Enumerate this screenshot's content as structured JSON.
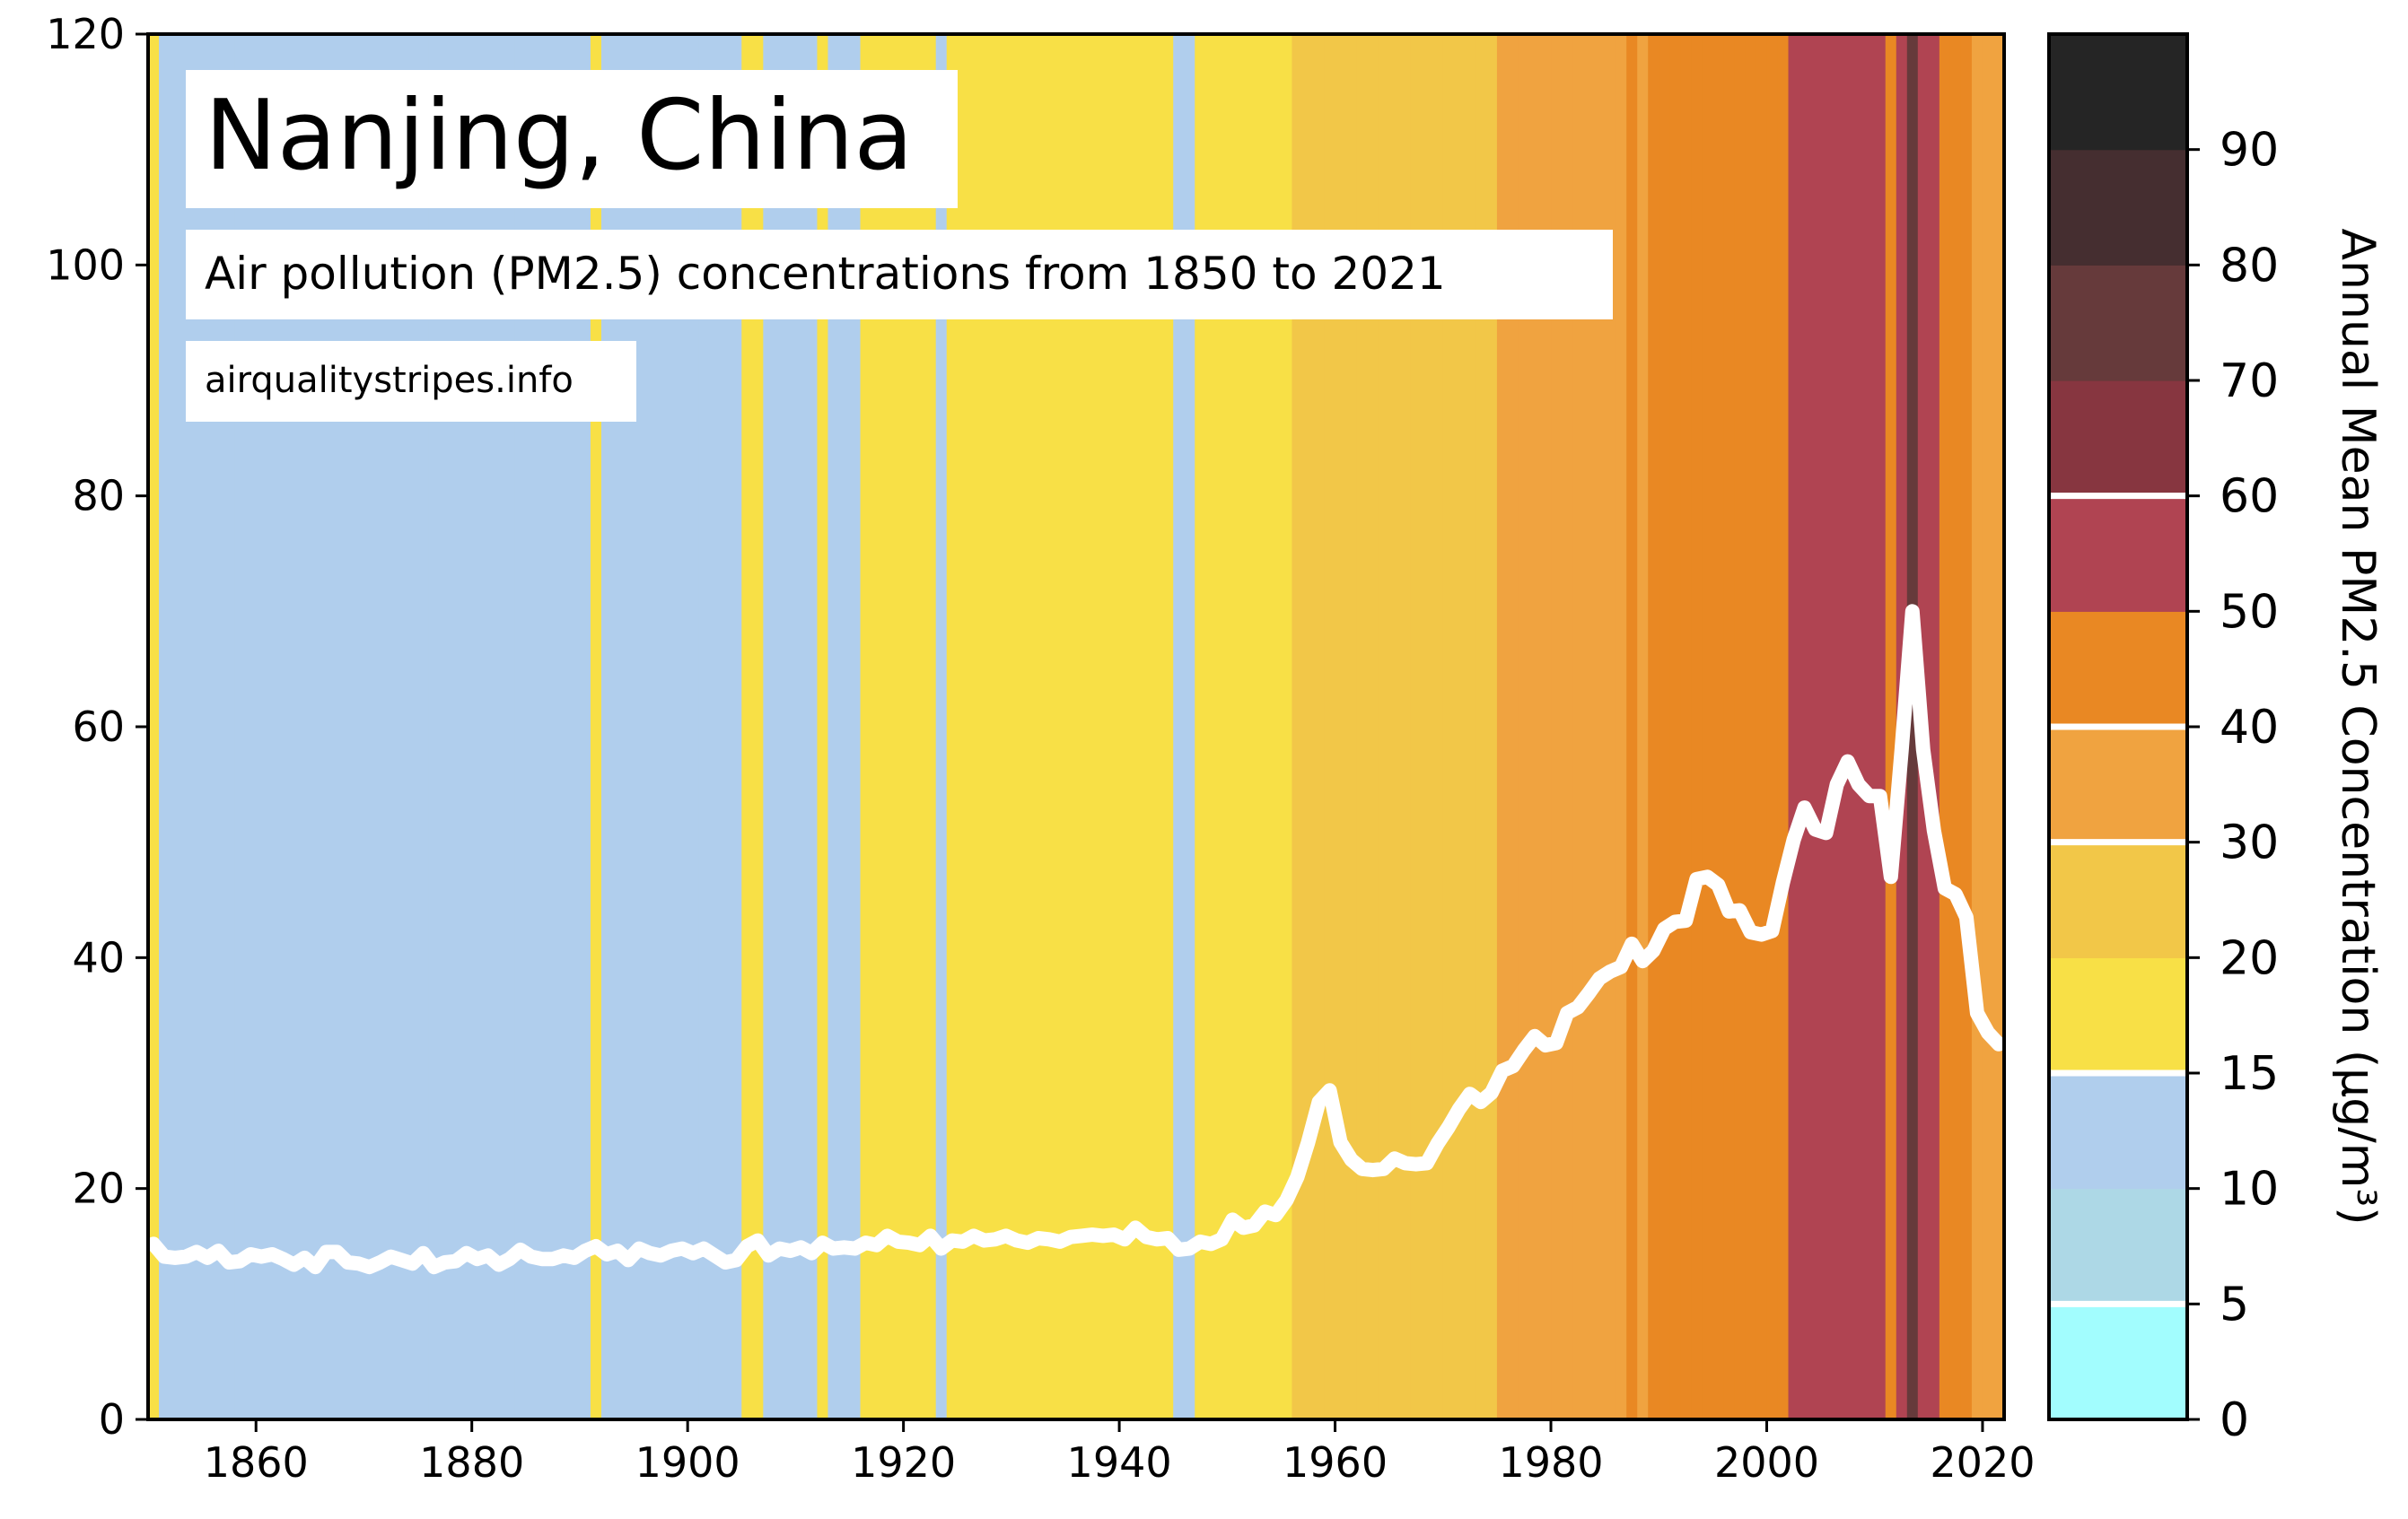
{
  "chart_data": {
    "type": "line",
    "title": "Nanjing, China",
    "subtitle": "Air pollution (PM2.5) concentrations from 1850 to 2021",
    "source": "airqualitystripes.info",
    "ylabel": "Annual Mean PM2.5 Concentration (µg/m³)",
    "xlim": [
      1850,
      2022
    ],
    "ylim": [
      0,
      120
    ],
    "x_ticks": [
      1860,
      1880,
      1900,
      1920,
      1940,
      1960,
      1980,
      2000,
      2020
    ],
    "y_ticks": [
      0,
      20,
      40,
      60,
      80,
      100,
      120
    ],
    "series": [
      {
        "x": [
          1850,
          1851,
          1852,
          1853,
          1854,
          1855,
          1856,
          1857,
          1858,
          1859,
          1860,
          1861,
          1862,
          1863,
          1864,
          1865,
          1866,
          1867,
          1868,
          1869,
          1870,
          1871,
          1872,
          1873,
          1874,
          1875,
          1876,
          1877,
          1878,
          1879,
          1880,
          1881,
          1882,
          1883,
          1884,
          1885,
          1886,
          1887,
          1888,
          1889,
          1890,
          1891,
          1892,
          1893,
          1894,
          1895,
          1896,
          1897,
          1898,
          1899,
          1900,
          1901,
          1902,
          1903,
          1904,
          1905,
          1906,
          1907,
          1908,
          1909,
          1910,
          1911,
          1912,
          1913,
          1914,
          1915,
          1916,
          1917,
          1918,
          1919,
          1920,
          1921,
          1922,
          1923,
          1924,
          1925,
          1926,
          1927,
          1928,
          1929,
          1930,
          1931,
          1932,
          1933,
          1934,
          1935,
          1936,
          1937,
          1938,
          1939,
          1940,
          1941,
          1942,
          1943,
          1944,
          1945,
          1946,
          1947,
          1948,
          1949,
          1950,
          1951,
          1952,
          1953,
          1954,
          1955,
          1956,
          1957,
          1958,
          1959,
          1960,
          1961,
          1962,
          1963,
          1964,
          1965,
          1966,
          1967,
          1968,
          1969,
          1970,
          1971,
          1972,
          1973,
          1974,
          1975,
          1976,
          1977,
          1978,
          1979,
          1980,
          1981,
          1982,
          1983,
          1984,
          1985,
          1986,
          1987,
          1988,
          1989,
          1990,
          1991,
          1992,
          1993,
          1994,
          1995,
          1996,
          1997,
          1998,
          1999,
          2000,
          2001,
          2002,
          2003,
          2004,
          2005,
          2006,
          2007,
          2008,
          2009,
          2010,
          2011,
          2012,
          2013,
          2014,
          2015,
          2016,
          2017,
          2018,
          2019,
          2020,
          2021
        ],
        "values": [
          15.2,
          14.1,
          14.0,
          14.1,
          14.5,
          14.0,
          14.6,
          13.6,
          13.7,
          14.3,
          14.1,
          14.3,
          13.9,
          13.4,
          14.0,
          13.2,
          14.5,
          14.5,
          13.6,
          13.5,
          13.2,
          13.6,
          14.1,
          13.8,
          13.5,
          14.4,
          13.2,
          13.6,
          13.7,
          14.4,
          13.9,
          14.2,
          13.4,
          13.9,
          14.7,
          14.1,
          13.9,
          13.9,
          14.2,
          14.0,
          14.6,
          15.0,
          14.3,
          14.6,
          13.8,
          14.8,
          14.4,
          14.2,
          14.6,
          14.8,
          14.4,
          14.8,
          14.2,
          13.6,
          13.8,
          15.0,
          15.5,
          14.2,
          14.8,
          14.6,
          14.9,
          14.4,
          15.3,
          14.8,
          14.9,
          14.8,
          15.3,
          15.1,
          15.9,
          15.4,
          15.3,
          15.1,
          15.9,
          14.8,
          15.5,
          15.4,
          15.9,
          15.5,
          15.6,
          15.9,
          15.5,
          15.3,
          15.7,
          15.6,
          15.4,
          15.8,
          15.9,
          16.0,
          15.9,
          16.0,
          15.6,
          16.6,
          15.8,
          15.6,
          15.7,
          14.7,
          14.8,
          15.4,
          15.2,
          15.6,
          17.3,
          16.6,
          16.8,
          18.0,
          17.7,
          19.0,
          21.0,
          24.0,
          27.5,
          28.5,
          24.0,
          22.5,
          21.7,
          21.6,
          21.7,
          22.6,
          22.2,
          22.1,
          22.2,
          23.9,
          25.3,
          26.9,
          28.2,
          27.5,
          28.3,
          30.2,
          30.6,
          32.0,
          33.2,
          32.4,
          32.6,
          35.2,
          35.7,
          36.9,
          38.2,
          38.8,
          39.2,
          41.2,
          39.7,
          40.6,
          42.5,
          43.1,
          43.2,
          46.8,
          47.0,
          46.3,
          44.0,
          44.1,
          42.2,
          42.0,
          42.3,
          46.5,
          50.2,
          53.0,
          51.1,
          50.8,
          55.0,
          57.0,
          55.0,
          54.0,
          54.0,
          47.0,
          58.0,
          70.0,
          58.0,
          51.0,
          46.0,
          45.5,
          43.5,
          35.2,
          33.5,
          32.5
        ]
      }
    ],
    "stripe_thresholds": [
      0,
      5,
      10,
      15,
      20,
      30,
      40,
      50,
      60,
      70,
      80,
      90,
      100
    ],
    "colorbar": {
      "range": [
        0,
        100
      ],
      "tick_labels": [
        "0",
        "5",
        "10",
        "15",
        "20",
        "30",
        "40",
        "50",
        "60",
        "70",
        "80",
        "90"
      ],
      "colors": [
        "#a2fdfe",
        "#add8e6",
        "#b0ceed",
        "#f8e046",
        "#f2c748",
        "#f0a340",
        "#e98823",
        "#b04452",
        "#873640",
        "#663a3b",
        "#452e30",
        "#252525"
      ],
      "white_marker_levels": [
        1,
        3,
        5,
        6,
        8
      ]
    }
  }
}
